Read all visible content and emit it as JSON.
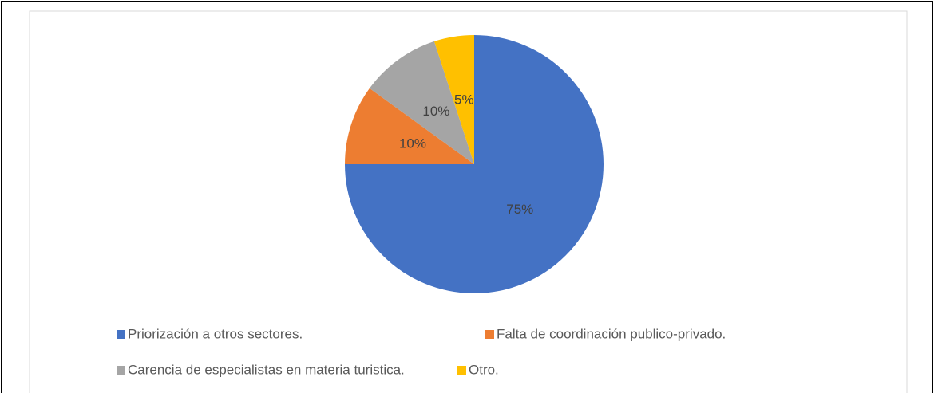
{
  "chart_data": {
    "type": "pie",
    "categories": [
      "Priorización a otros sectores.",
      "Falta de coordinación publico-privado.",
      "Carencia de especialistas en materia turistica.",
      "Otro."
    ],
    "values": [
      75,
      10,
      10,
      5
    ],
    "value_labels": [
      "75%",
      "10%",
      "10%",
      "5%"
    ],
    "colors": [
      "#4472c4",
      "#ed7d31",
      "#a5a5a5",
      "#ffc000"
    ],
    "legend": "bottom"
  }
}
